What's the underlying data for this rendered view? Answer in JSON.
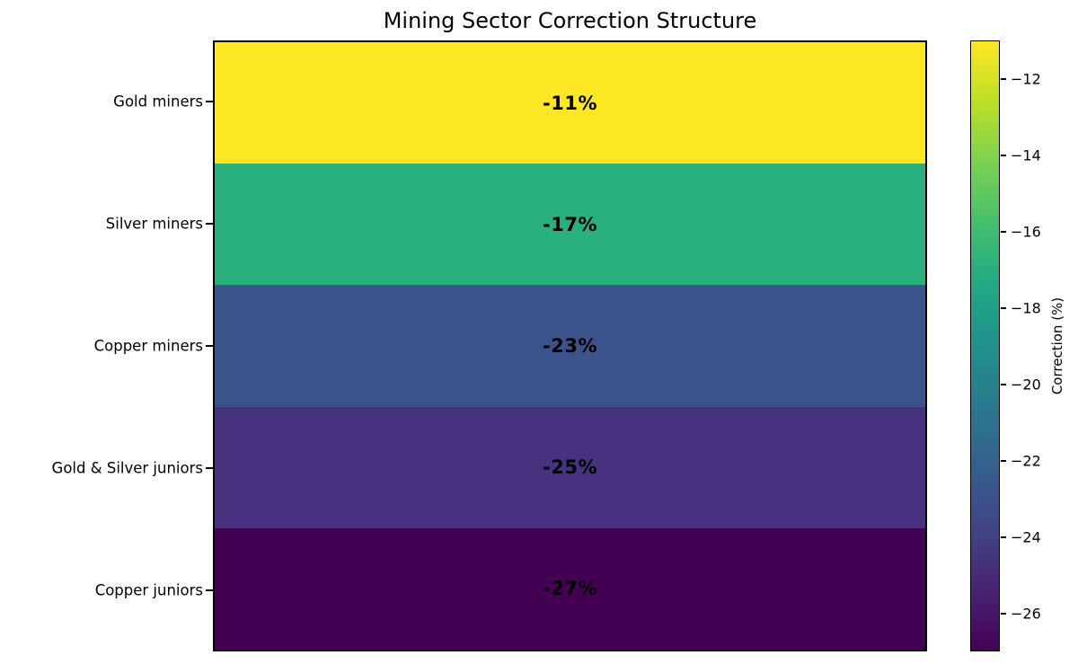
{
  "chart_data": {
    "type": "heatmap",
    "title": "Mining Sector Correction Structure",
    "orientation": "horizontal-bands",
    "categories": [
      "Gold miners",
      "Silver miners",
      "Copper miners",
      "Gold & Silver juniors",
      "Copper juniors"
    ],
    "values": [
      -11,
      -17,
      -23,
      -25,
      -27
    ],
    "value_labels": [
      "-11%",
      "-17%",
      "-23%",
      "-25%",
      "-27%"
    ],
    "rows": [
      {
        "label": "Gold miners",
        "value": -11,
        "text": "-11%",
        "color": "#fde725"
      },
      {
        "label": "Silver miners",
        "value": -17,
        "text": "-17%",
        "color": "#2ab07f"
      },
      {
        "label": "Copper miners",
        "value": -23,
        "text": "-23%",
        "color": "#3b528b"
      },
      {
        "label": "Gold & Silver juniors",
        "value": -25,
        "text": "-25%",
        "color": "#46327e"
      },
      {
        "label": "Copper juniors",
        "value": -27,
        "text": "-27%",
        "color": "#440154"
      }
    ],
    "colorbar": {
      "label": "Correction (%)",
      "vmin": -27,
      "vmax": -11,
      "colormap": "viridis",
      "ticks": [
        -12,
        -14,
        -16,
        -18,
        -20,
        -22,
        -24,
        -26
      ],
      "tick_labels": [
        "−12",
        "−14",
        "−16",
        "−18",
        "−20",
        "−22",
        "−24",
        "−26"
      ],
      "gradient_stops": [
        "#440154",
        "#482475",
        "#414487",
        "#355f8d",
        "#2a788e",
        "#21918c",
        "#22a884",
        "#44bf70",
        "#7ad151",
        "#bddf26",
        "#fde725"
      ]
    },
    "grid": false,
    "legend": false
  }
}
